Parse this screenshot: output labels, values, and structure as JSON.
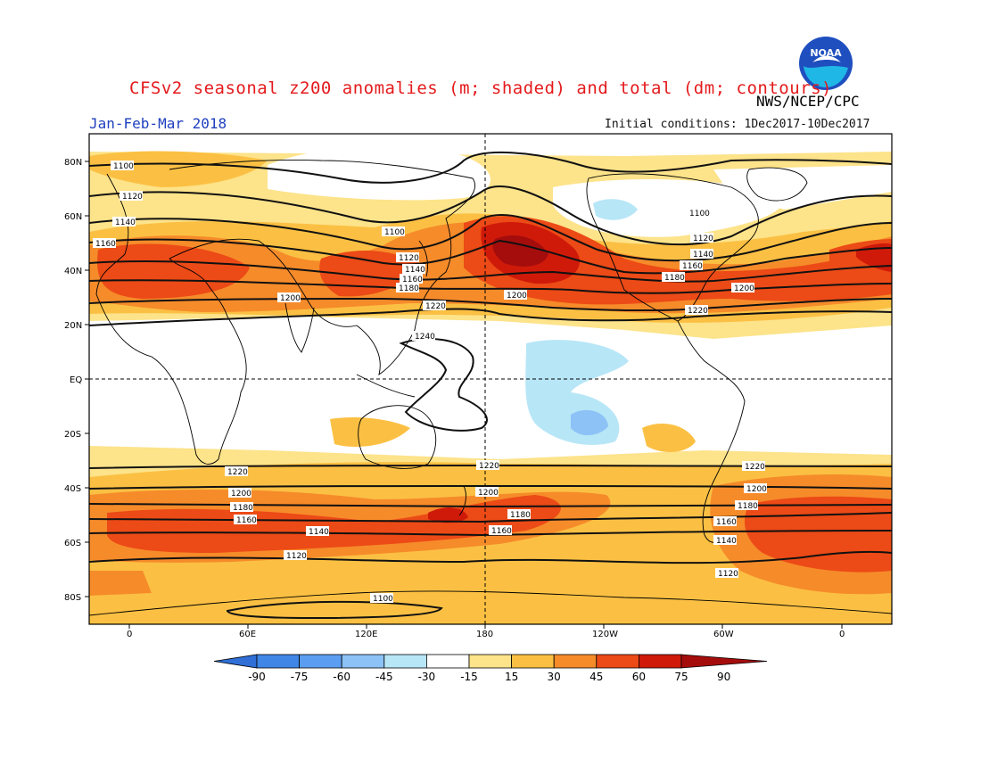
{
  "header": {
    "title": "CFSv2 seasonal z200 anomalies (m; shaded) and total (dm; contours)",
    "agency": "NWS/NCEP/CPC",
    "season": "Jan-Feb-Mar 2018",
    "initial_conditions": "Initial conditions: 1Dec2017-10Dec2017",
    "logo_text": "NOAA"
  },
  "axes": {
    "lat_labels": [
      "80N",
      "60N",
      "40N",
      "20N",
      "EQ",
      "20S",
      "40S",
      "60S",
      "80S"
    ],
    "lon_labels": [
      "0",
      "60E",
      "120E",
      "180",
      "120W",
      "60W",
      "0"
    ]
  },
  "contours": {
    "labels": [
      "1100",
      "1120",
      "1140",
      "1160",
      "1180",
      "1200",
      "1220",
      "1240"
    ]
  },
  "colorbar": {
    "ticks": [
      "-90",
      "-75",
      "-60",
      "-45",
      "-30",
      "-15",
      "15",
      "30",
      "45",
      "60",
      "75",
      "90"
    ],
    "colors": [
      "#2f6fd6",
      "#3f86e6",
      "#5b9df0",
      "#8cc2f6",
      "#b7e6f7",
      "#ffffff",
      "#fde38a",
      "#fbc043",
      "#f68b2a",
      "#ec4a16",
      "#cf1a0a",
      "#a50d0d"
    ]
  },
  "colors": {
    "title": "#e41a1c",
    "season": "#1f3fbf"
  }
}
